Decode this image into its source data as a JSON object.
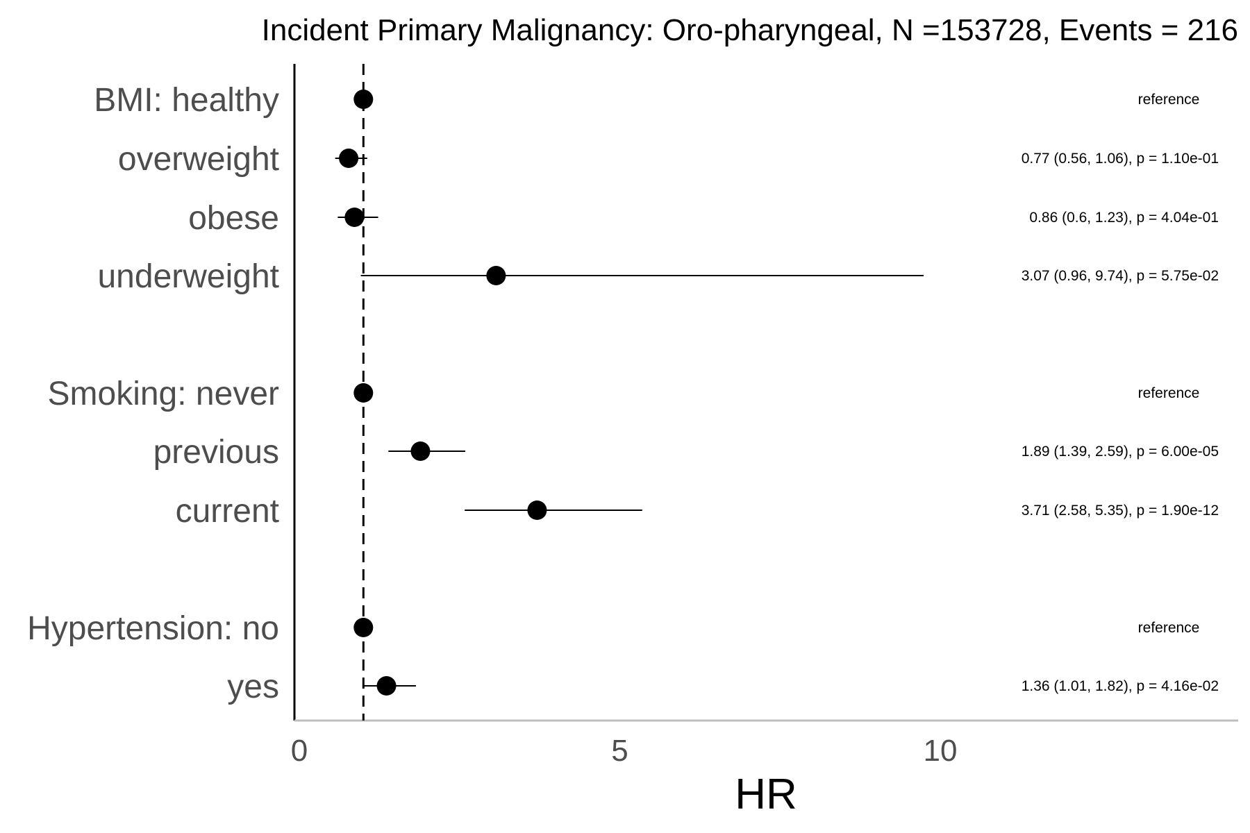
{
  "chart_data": {
    "type": "scatter",
    "subtype": "forest-plot",
    "title": "Incident Primary Malignancy: Oro-pharyngeal, N =153728, Events = 216",
    "xlabel": "HR",
    "ylabel": "",
    "xlim": [
      0,
      14.6
    ],
    "x_ticks": [
      0,
      5,
      10
    ],
    "x_tick_labels": [
      "0",
      "5",
      "10"
    ],
    "reference_line": 1,
    "grid": false,
    "colors": {
      "point": "#000000",
      "axis": "#000000",
      "x_axis": "#bebebe",
      "label": "#4d4d4d"
    },
    "rows": [
      {
        "label": "BMI: healthy",
        "hr": 1,
        "lower": null,
        "upper": null,
        "annotation": "reference"
      },
      {
        "label": "overweight",
        "hr": 0.77,
        "lower": 0.56,
        "upper": 1.06,
        "annotation": "0.77 (0.56, 1.06), p = 1.10e-01"
      },
      {
        "label": "obese",
        "hr": 0.86,
        "lower": 0.6,
        "upper": 1.23,
        "annotation": "0.86 (0.6, 1.23), p = 4.04e-01"
      },
      {
        "label": "underweight",
        "hr": 3.07,
        "lower": 0.96,
        "upper": 9.74,
        "annotation": "3.07 (0.96, 9.74), p = 5.75e-02"
      },
      {
        "label": "Smoking: never",
        "hr": 1,
        "lower": null,
        "upper": null,
        "annotation": "reference"
      },
      {
        "label": "previous",
        "hr": 1.89,
        "lower": 1.39,
        "upper": 2.59,
        "annotation": "1.89 (1.39, 2.59), p = 6.00e-05"
      },
      {
        "label": "current",
        "hr": 3.71,
        "lower": 2.58,
        "upper": 5.35,
        "annotation": "3.71 (2.58, 5.35), p = 1.90e-12"
      },
      {
        "label": "Hypertension: no",
        "hr": 1,
        "lower": null,
        "upper": null,
        "annotation": "reference"
      },
      {
        "label": "yes",
        "hr": 1.36,
        "lower": 1.01,
        "upper": 1.82,
        "annotation": "1.36 (1.01, 1.82), p = 4.16e-02"
      }
    ]
  }
}
